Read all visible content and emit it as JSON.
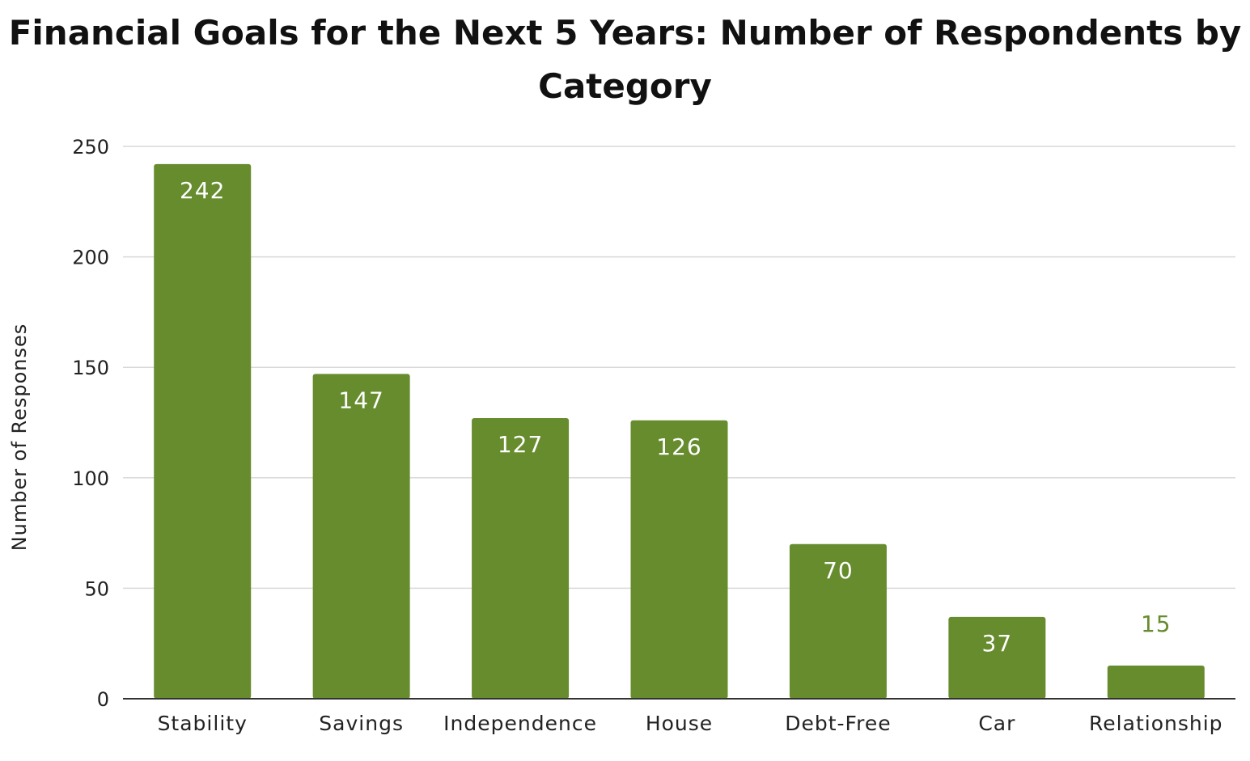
{
  "chart_data": {
    "type": "bar",
    "title": "Financial Goals for the Next 5 Years: Number of Respondents by Category",
    "title_lines": [
      "Financial Goals for the Next 5 Years: Number of Respondents by",
      "Category"
    ],
    "xlabel": "",
    "ylabel": "Number of Responses",
    "categories": [
      "Stability",
      "Savings",
      "Independence",
      "House",
      "Debt-Free",
      "Car",
      "Relationship"
    ],
    "values": [
      242,
      147,
      127,
      126,
      70,
      37,
      15
    ],
    "data_labels": [
      "242",
      "147",
      "127",
      "126",
      "70",
      "37",
      "15"
    ],
    "ylim": [
      0,
      250
    ],
    "yticks": [
      0,
      50,
      100,
      150,
      200,
      250
    ],
    "ytick_labels": [
      "0",
      "50",
      "100",
      "150",
      "200",
      "250"
    ],
    "grid": true,
    "legend": "none",
    "colors": {
      "bar": "#678c2e",
      "label_inside": "#ffffff",
      "label_outside": "#678c2e",
      "grid": "#d9d9d9",
      "axis": "#333333"
    }
  }
}
